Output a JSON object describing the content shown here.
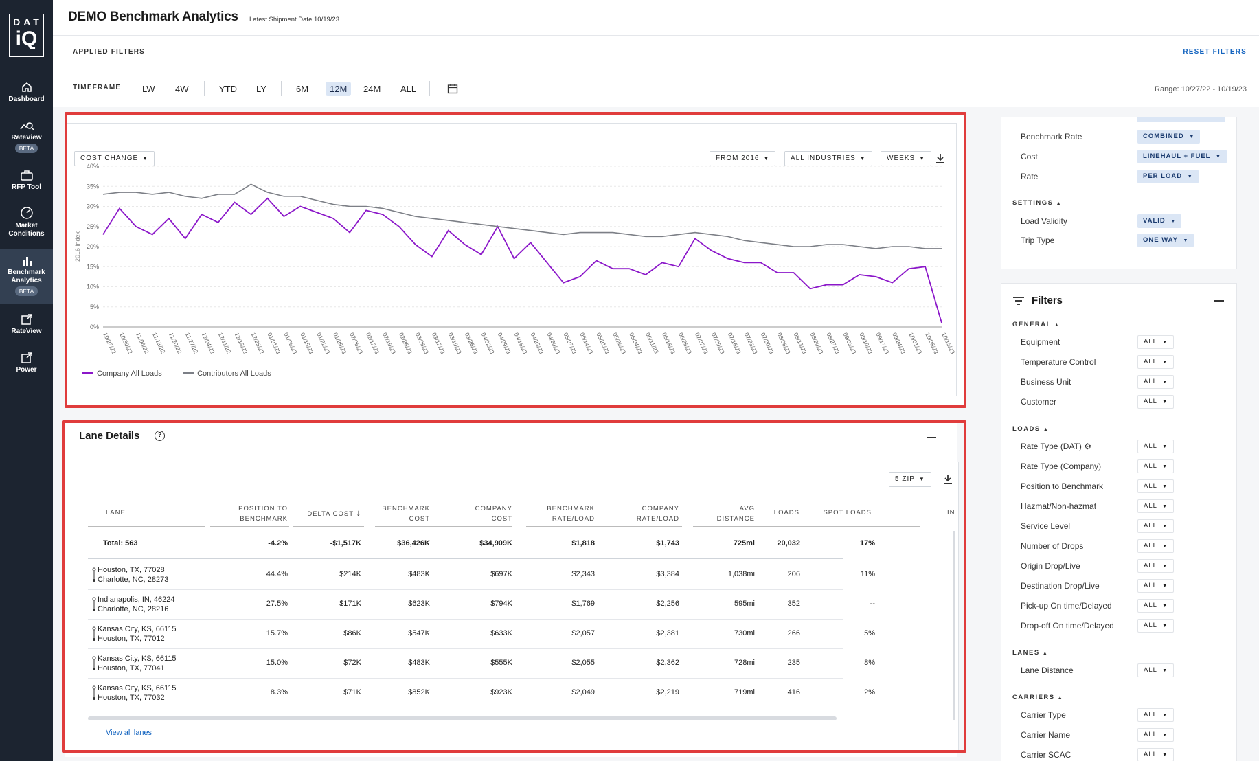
{
  "brand": {
    "logo_top": "DAT",
    "logo_bottom": "iQ"
  },
  "nav": [
    {
      "label": "Dashboard",
      "beta": ""
    },
    {
      "label": "RateView",
      "beta": "BETA"
    },
    {
      "label": "RFP Tool",
      "beta": ""
    },
    {
      "label": "Market Conditions",
      "beta": ""
    },
    {
      "label": "Benchmark Analytics",
      "beta": "BETA"
    },
    {
      "label": "RateView",
      "beta": ""
    },
    {
      "label": "Power",
      "beta": ""
    }
  ],
  "header": {
    "title": "DEMO Benchmark Analytics",
    "subtitle": "Latest Shipment Date 10/19/23"
  },
  "filters_bar": {
    "label": "APPLIED FILTERS",
    "reset": "RESET FILTERS"
  },
  "timeframe": {
    "label": "TIMEFRAME",
    "options": [
      "LW",
      "4W",
      "YTD",
      "LY",
      "6M",
      "12M",
      "24M",
      "ALL"
    ],
    "selected": "12M",
    "range": "Range: 10/27/22 - 10/19/23"
  },
  "chart_controls": {
    "metric": "COST CHANGE",
    "from": "FROM 2016",
    "industries": "ALL INDUSTRIES",
    "interval": "WEEKS"
  },
  "chart_data": {
    "type": "line",
    "ylabel": "2016 index",
    "ylim": [
      0,
      40
    ],
    "yticks": [
      "0%",
      "5%",
      "10%",
      "15%",
      "20%",
      "25%",
      "30%",
      "35%",
      "40%"
    ],
    "x": [
      "10/27/22",
      "11/03/22",
      "11/10/22",
      "11/17/22",
      "11/24/22",
      "12/01/22",
      "12/08/22",
      "12/15/22",
      "12/22/22",
      "12/29/22",
      "01/05/23",
      "01/12/23",
      "01/19/23",
      "01/26/23",
      "02/02/23",
      "02/09/23",
      "02/16/23",
      "02/23/23",
      "03/02/23",
      "03/09/23",
      "03/16/23",
      "03/23/23",
      "03/30/23",
      "04/06/23",
      "04/13/23",
      "04/20/23",
      "04/27/23",
      "05/04/23",
      "05/11/23",
      "05/18/23",
      "05/25/23",
      "06/01/23",
      "06/08/23",
      "06/15/23",
      "06/22/23",
      "06/29/23",
      "07/06/23",
      "07/13/23",
      "07/20/23",
      "07/27/23",
      "08/03/23",
      "08/10/23",
      "08/17/23",
      "08/24/23",
      "08/31/23",
      "09/07/23",
      "09/14/23",
      "09/21/23",
      "09/28/23",
      "10/05/23",
      "10/12/23",
      "10/19/23"
    ],
    "xticks": [
      "10/27/22",
      "10/30/22",
      "11/06/22",
      "11/13/22",
      "11/20/22",
      "11/27/22",
      "12/04/22",
      "12/11/22",
      "12/18/22",
      "12/25/22",
      "01/01/23",
      "01/08/23",
      "01/15/23",
      "01/22/23",
      "01/29/23",
      "02/05/23",
      "02/12/23",
      "02/19/23",
      "02/26/23",
      "03/05/23",
      "03/12/23",
      "03/19/23",
      "03/26/23",
      "04/02/23",
      "04/09/23",
      "04/16/23",
      "04/23/23",
      "04/30/23",
      "05/07/23",
      "05/14/23",
      "05/21/23",
      "05/28/23",
      "06/04/23",
      "06/11/23",
      "06/18/23",
      "06/25/23",
      "07/02/23",
      "07/09/23",
      "07/16/23",
      "07/23/23",
      "07/30/23",
      "08/06/23",
      "08/13/23",
      "08/20/23",
      "08/27/23",
      "09/03/23",
      "09/10/23",
      "09/17/23",
      "09/24/23",
      "10/01/23",
      "10/08/23",
      "10/15/23"
    ],
    "series": [
      {
        "name": "Company All Loads",
        "color": "#8b17c9",
        "values": [
          23,
          29.5,
          25,
          23,
          27,
          22,
          28,
          26,
          31,
          28,
          32,
          27.5,
          30,
          28.5,
          27,
          23.5,
          29,
          28,
          25,
          20.5,
          17.5,
          24,
          20.5,
          18,
          25,
          17,
          21,
          16,
          11,
          12.5,
          16.5,
          14.5,
          14.5,
          13,
          16,
          15,
          22,
          19,
          17,
          16,
          16,
          13.5,
          13.5,
          9.5,
          10.5,
          10.5,
          13,
          12.5,
          11,
          14.5,
          15,
          1
        ]
      },
      {
        "name": "Contributors All Loads",
        "color": "#7c7f86",
        "values": [
          33,
          33.5,
          33.5,
          33,
          33.5,
          32.5,
          32,
          33,
          33,
          35.5,
          33.5,
          32.5,
          32.5,
          31.5,
          30.5,
          30,
          30,
          29.5,
          28.5,
          27.5,
          27,
          26.5,
          26,
          25.5,
          25,
          24.5,
          24,
          23.5,
          23,
          23.5,
          23.5,
          23.5,
          23,
          22.5,
          22.5,
          23,
          23.5,
          23,
          22.5,
          21.5,
          21,
          20.5,
          20,
          20,
          20.5,
          20.5,
          20,
          19.5,
          20,
          20,
          19.5,
          19.5
        ]
      }
    ]
  },
  "lanes": {
    "title": "Lane Details",
    "zip": "5 ZIP",
    "columns": [
      "LANE",
      "POSITION TO BENCHMARK",
      "DELTA COST",
      "BENCHMARK COST",
      "COMPANY COST",
      "BENCHMARK RATE/LOAD",
      "COMPANY RATE/LOAD",
      "AVG DISTANCE",
      "LOADS",
      "SPOT LOADS",
      "IN"
    ],
    "total": {
      "lane": "Total: 563",
      "position": "-4.2%",
      "delta": "-$1,517K",
      "bench_cost": "$36,426K",
      "company_cost": "$34,909K",
      "bench_rate": "$1,818",
      "company_rate": "$1,743",
      "distance": "725mi",
      "loads": "20,032",
      "spot": "17%"
    },
    "rows": [
      {
        "origin": "Houston, TX, 77028",
        "dest": "Charlotte, NC, 28273",
        "position": "44.4%",
        "delta": "$214K",
        "bench_cost": "$483K",
        "company_cost": "$697K",
        "bench_rate": "$2,343",
        "company_rate": "$3,384",
        "distance": "1,038mi",
        "loads": "206",
        "spot": "11%"
      },
      {
        "origin": "Indianapolis, IN, 46224",
        "dest": "Charlotte, NC, 28216",
        "position": "27.5%",
        "delta": "$171K",
        "bench_cost": "$623K",
        "company_cost": "$794K",
        "bench_rate": "$1,769",
        "company_rate": "$2,256",
        "distance": "595mi",
        "loads": "352",
        "spot": "--"
      },
      {
        "origin": "Kansas City, KS, 66115",
        "dest": "Houston, TX, 77012",
        "position": "15.7%",
        "delta": "$86K",
        "bench_cost": "$547K",
        "company_cost": "$633K",
        "bench_rate": "$2,057",
        "company_rate": "$2,381",
        "distance": "730mi",
        "loads": "266",
        "spot": "5%"
      },
      {
        "origin": "Kansas City, KS, 66115",
        "dest": "Houston, TX, 77041",
        "position": "15.0%",
        "delta": "$72K",
        "bench_cost": "$483K",
        "company_cost": "$555K",
        "bench_rate": "$2,055",
        "company_rate": "$2,362",
        "distance": "728mi",
        "loads": "235",
        "spot": "8%"
      },
      {
        "origin": "Kansas City, KS, 66115",
        "dest": "Houston, TX, 77032",
        "position": "8.3%",
        "delta": "$71K",
        "bench_cost": "$852K",
        "company_cost": "$923K",
        "bench_rate": "$2,049",
        "company_rate": "$2,219",
        "distance": "719mi",
        "loads": "416",
        "spot": "2%"
      }
    ],
    "view_all": "View all lanes"
  },
  "settings_panel": {
    "rows": [
      {
        "label": "Benchmark Rate",
        "value": "COMBINED"
      },
      {
        "label": "Cost",
        "value": "LINEHAUL + FUEL"
      },
      {
        "label": "Rate",
        "value": "PER LOAD"
      }
    ],
    "settings_label": "SETTINGS",
    "settings_rows": [
      {
        "label": "Load Validity",
        "value": "VALID"
      },
      {
        "label": "Trip Type",
        "value": "ONE WAY"
      }
    ]
  },
  "filters_panel": {
    "title": "Filters",
    "groups": [
      {
        "name": "GENERAL",
        "items": [
          "Equipment",
          "Temperature Control",
          "Business Unit",
          "Customer"
        ]
      },
      {
        "name": "LOADS",
        "items": [
          "Rate Type (DAT)",
          "Rate Type (Company)",
          "Position to Benchmark",
          "Hazmat/Non-hazmat",
          "Service Level",
          "Number of Drops",
          "Origin Drop/Live",
          "Destination Drop/Live",
          "Pick-up On time/Delayed",
          "Drop-off On time/Delayed"
        ]
      },
      {
        "name": "LANES",
        "items": [
          "Lane Distance"
        ]
      },
      {
        "name": "CARRIERS",
        "items": [
          "Carrier Type",
          "Carrier Name",
          "Carrier SCAC"
        ]
      }
    ],
    "all_label": "ALL"
  }
}
